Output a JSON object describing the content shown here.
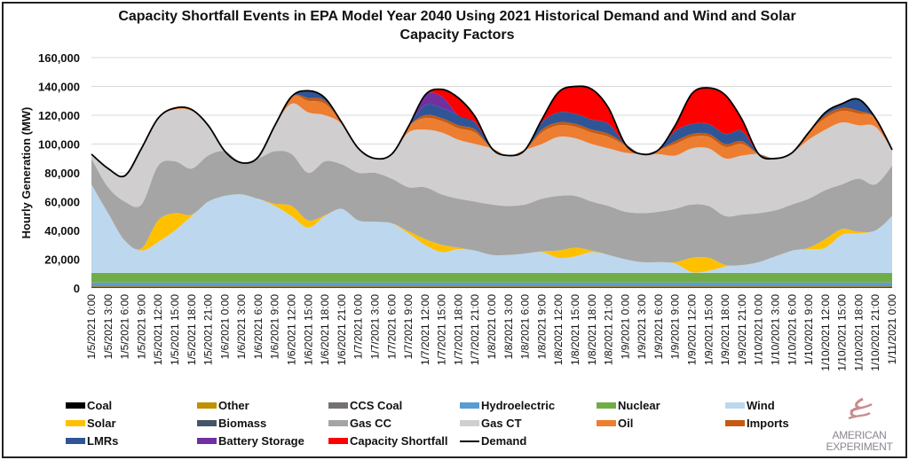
{
  "chart_data": {
    "type": "area",
    "stacked": true,
    "title": "Capacity Shortfall Events in EPA Model Year 2040 Using 2021 Historical Demand and Wind and Solar Capacity Factors",
    "title_lines": [
      "Capacity Shortfall Events in EPA Model Year 2040 Using 2021 Historical Demand and Wind and Solar",
      "Capacity Factors"
    ],
    "ylabel": "Hourly Generation (MW)",
    "xlabel": "",
    "ylim": [
      0,
      160000
    ],
    "yticks": [
      0,
      20000,
      40000,
      60000,
      80000,
      100000,
      120000,
      140000,
      160000
    ],
    "ytick_labels": [
      "0",
      "20,000",
      "40,000",
      "60,000",
      "80,000",
      "100,000",
      "120,000",
      "140,000",
      "160,000"
    ],
    "grid": true,
    "legend_position": "bottom",
    "x": [
      "1/5/2021 0:00",
      "1/5/2021 3:00",
      "1/5/2021 6:00",
      "1/5/2021 9:00",
      "1/5/2021 12:00",
      "1/5/2021 15:00",
      "1/5/2021 18:00",
      "1/5/2021 21:00",
      "1/6/2021 0:00",
      "1/6/2021 3:00",
      "1/6/2021 6:00",
      "1/6/2021 9:00",
      "1/6/2021 12:00",
      "1/6/2021 15:00",
      "1/6/2021 18:00",
      "1/6/2021 21:00",
      "1/7/2021 0:00",
      "1/7/2021 3:00",
      "1/7/2021 6:00",
      "1/7/2021 9:00",
      "1/7/2021 12:00",
      "1/7/2021 15:00",
      "1/7/2021 18:00",
      "1/7/2021 21:00",
      "1/8/2021 0:00",
      "1/8/2021 3:00",
      "1/8/2021 6:00",
      "1/8/2021 9:00",
      "1/8/2021 12:00",
      "1/8/2021 15:00",
      "1/8/2021 18:00",
      "1/8/2021 21:00",
      "1/9/2021 0:00",
      "1/9/2021 3:00",
      "1/9/2021 6:00",
      "1/9/2021 9:00",
      "1/9/2021 12:00",
      "1/9/2021 15:00",
      "1/9/2021 18:00",
      "1/9/2021 21:00",
      "1/10/2021 0:00",
      "1/10/2021 3:00",
      "1/10/2021 6:00",
      "1/10/2021 9:00",
      "1/10/2021 12:00",
      "1/10/2021 15:00",
      "1/10/2021 18:00",
      "1/10/2021 21:00",
      "1/11/2021 0:00"
    ],
    "series": [
      {
        "name": "Coal",
        "color": "#000000",
        "values": [
          300,
          300,
          300,
          300,
          300,
          300,
          300,
          300,
          300,
          300,
          300,
          300,
          300,
          300,
          300,
          300,
          300,
          300,
          300,
          300,
          300,
          300,
          300,
          300,
          300,
          300,
          300,
          300,
          300,
          300,
          300,
          300,
          300,
          300,
          300,
          300,
          300,
          300,
          300,
          300,
          300,
          300,
          300,
          300,
          300,
          300,
          300,
          300,
          300
        ]
      },
      {
        "name": "Other",
        "color": "#bf9000",
        "values": [
          600,
          600,
          600,
          600,
          600,
          600,
          600,
          600,
          600,
          600,
          600,
          600,
          600,
          600,
          600,
          600,
          600,
          600,
          600,
          600,
          600,
          600,
          600,
          600,
          600,
          600,
          600,
          600,
          600,
          600,
          600,
          600,
          600,
          600,
          600,
          600,
          600,
          600,
          600,
          600,
          600,
          600,
          600,
          600,
          600,
          600,
          600,
          600,
          600
        ]
      },
      {
        "name": "CCS Coal",
        "color": "#767171",
        "values": [
          700,
          700,
          700,
          700,
          700,
          700,
          700,
          700,
          700,
          700,
          700,
          700,
          700,
          700,
          700,
          700,
          700,
          700,
          700,
          700,
          700,
          700,
          700,
          700,
          700,
          700,
          700,
          700,
          700,
          700,
          700,
          700,
          700,
          700,
          700,
          700,
          700,
          700,
          700,
          700,
          700,
          700,
          700,
          700,
          700,
          700,
          700,
          700,
          700
        ]
      },
      {
        "name": "Hydroelectric",
        "color": "#5b9bd5",
        "values": [
          2200,
          2200,
          2200,
          2200,
          2200,
          2200,
          2200,
          2200,
          2200,
          2200,
          2200,
          2200,
          2200,
          2200,
          2200,
          2200,
          2200,
          2200,
          2200,
          2200,
          2200,
          2200,
          2200,
          2200,
          2200,
          2200,
          2200,
          2200,
          2200,
          2200,
          2200,
          2200,
          2200,
          2200,
          2200,
          2200,
          2200,
          2200,
          2200,
          2200,
          2200,
          2200,
          2200,
          2200,
          2200,
          2200,
          2200,
          2200,
          2200
        ]
      },
      {
        "name": "Nuclear",
        "color": "#70ad47",
        "values": [
          6700,
          6700,
          6700,
          6700,
          6700,
          6700,
          6700,
          6700,
          6700,
          6700,
          6700,
          6700,
          6700,
          6700,
          6700,
          6700,
          6700,
          6700,
          6700,
          6700,
          6700,
          6700,
          6700,
          6700,
          6700,
          6700,
          6700,
          6700,
          6700,
          6700,
          6700,
          6700,
          6700,
          6700,
          6700,
          6700,
          6700,
          6700,
          6700,
          6700,
          6700,
          6700,
          6700,
          6700,
          6700,
          6700,
          6700,
          6700,
          6700
        ]
      },
      {
        "name": "Wind",
        "color": "#bdd7ee",
        "values": [
          61500,
          41500,
          22500,
          15500,
          21500,
          29500,
          39500,
          49500,
          53500,
          54500,
          51500,
          46500,
          39500,
          31500,
          39500,
          44500,
          36500,
          35500,
          34500,
          27500,
          19500,
          14500,
          16500,
          15500,
          12500,
          12500,
          13500,
          14500,
          10500,
          11500,
          14500,
          12500,
          9500,
          7500,
          7500,
          6500,
          500,
          1500,
          4500,
          5500,
          7500,
          11500,
          15500,
          16500,
          17500,
          26500,
          27500,
          29500,
          39500
        ]
      },
      {
        "name": "Solar",
        "color": "#ffc000",
        "values": [
          0,
          0,
          0,
          1500,
          15000,
          12000,
          1000,
          0,
          0,
          0,
          0,
          1500,
          7000,
          5000,
          500,
          0,
          0,
          0,
          0,
          1500,
          4000,
          5000,
          1000,
          0,
          0,
          0,
          0,
          500,
          5000,
          6000,
          1000,
          0,
          0,
          0,
          0,
          1000,
          10000,
          9000,
          1000,
          0,
          0,
          0,
          0,
          1000,
          6000,
          4000,
          1000,
          0,
          0
        ]
      },
      {
        "name": "Biomass",
        "color": "#44546a",
        "values": [
          0,
          0,
          0,
          0,
          0,
          0,
          0,
          0,
          0,
          0,
          0,
          0,
          0,
          0,
          0,
          0,
          0,
          0,
          0,
          0,
          0,
          0,
          0,
          0,
          0,
          0,
          0,
          0,
          0,
          0,
          0,
          0,
          0,
          0,
          0,
          0,
          0,
          0,
          0,
          0,
          0,
          0,
          0,
          0,
          0,
          0,
          0,
          0,
          0
        ]
      },
      {
        "name": "Gas CC",
        "color": "#a5a5a5",
        "values": [
          18000,
          18000,
          27000,
          30500,
          38000,
          36000,
          32000,
          32000,
          31000,
          22000,
          28000,
          36500,
          36000,
          33000,
          37500,
          31000,
          33000,
          34000,
          31000,
          30500,
          36000,
          35000,
          34000,
          34000,
          35000,
          34000,
          34000,
          36500,
          38000,
          36000,
          34000,
          34000,
          33000,
          34000,
          35000,
          37000,
          37000,
          36000,
          34000,
          35000,
          34000,
          32000,
          32000,
          34000,
          34000,
          31000,
          37000,
          32000,
          35000
        ]
      },
      {
        "name": "Gas CT",
        "color": "#d0cece",
        "values": [
          3000,
          13000,
          18000,
          39000,
          33000,
          36000,
          40000,
          21000,
          0,
          0,
          1000,
          18000,
          35000,
          42000,
          32000,
          28000,
          17000,
          10000,
          17000,
          38000,
          40000,
          43000,
          41000,
          40000,
          39000,
          35000,
          38000,
          38000,
          41000,
          40000,
          40000,
          40000,
          41000,
          41000,
          40000,
          37000,
          39000,
          40000,
          40000,
          41000,
          41000,
          36000,
          36000,
          41000,
          42000,
          43000,
          37000,
          40000,
          11000
        ]
      },
      {
        "name": "Oil",
        "color": "#ed7d31",
        "values": [
          0,
          0,
          0,
          0,
          0,
          1000,
          1000,
          0,
          0,
          0,
          0,
          0,
          5000,
          8000,
          8000,
          1000,
          0,
          0,
          0,
          4000,
          8000,
          8000,
          8000,
          8000,
          0,
          0,
          0,
          8000,
          8000,
          8000,
          8000,
          8000,
          5000,
          0,
          3000,
          8000,
          8000,
          8000,
          8000,
          8000,
          0,
          0,
          0,
          5000,
          8000,
          8000,
          8000,
          6000,
          0
        ]
      },
      {
        "name": "Imports",
        "color": "#c55a11",
        "values": [
          0,
          0,
          0,
          0,
          0,
          0,
          0,
          0,
          0,
          0,
          0,
          0,
          0,
          2000,
          2000,
          0,
          0,
          0,
          0,
          0,
          2000,
          2000,
          2000,
          2000,
          0,
          0,
          0,
          2000,
          2000,
          2000,
          2000,
          2000,
          1000,
          0,
          0,
          2000,
          2000,
          2000,
          2000,
          2000,
          0,
          0,
          0,
          0,
          2000,
          2000,
          2000,
          0,
          0
        ]
      },
      {
        "name": "LMRs",
        "color": "#2f5597",
        "values": [
          0,
          0,
          0,
          0,
          0,
          0,
          0,
          0,
          0,
          0,
          0,
          0,
          0,
          5000,
          2000,
          0,
          0,
          0,
          0,
          0,
          7000,
          7000,
          7000,
          5000,
          0,
          0,
          0,
          5000,
          7000,
          7000,
          7000,
          7000,
          0,
          0,
          0,
          7000,
          7000,
          7000,
          7000,
          7000,
          0,
          0,
          0,
          0,
          2000,
          3000,
          8000,
          0,
          0
        ]
      },
      {
        "name": "Battery Storage",
        "color": "#7030a0",
        "values": [
          0,
          0,
          0,
          0,
          0,
          0,
          0,
          0,
          0,
          0,
          0,
          0,
          0,
          0,
          0,
          0,
          0,
          0,
          0,
          0,
          7000,
          8000,
          0,
          0,
          0,
          0,
          0,
          0,
          0,
          0,
          0,
          0,
          0,
          0,
          0,
          0,
          0,
          0,
          0,
          0,
          0,
          0,
          0,
          0,
          0,
          0,
          0,
          0,
          0
        ]
      },
      {
        "name": "Capacity Shortfall",
        "color": "#ff0000",
        "values": [
          0,
          0,
          0,
          0,
          0,
          0,
          0,
          0,
          0,
          0,
          0,
          0,
          0,
          0,
          0,
          0,
          0,
          0,
          0,
          0,
          0,
          5000,
          12000,
          4000,
          0,
          0,
          0,
          2000,
          14000,
          19000,
          21000,
          11000,
          0,
          0,
          0,
          4000,
          21000,
          25000,
          27000,
          8000,
          0,
          0,
          0,
          0,
          0,
          0,
          0,
          0,
          0
        ]
      }
    ],
    "line_series": {
      "name": "Demand",
      "color": "#000000",
      "values": [
        93000,
        83000,
        78000,
        97000,
        118000,
        125000,
        124000,
        113000,
        95000,
        87000,
        91000,
        113000,
        133000,
        137000,
        132000,
        115000,
        97000,
        90000,
        93000,
        112000,
        134000,
        138000,
        132000,
        119000,
        97000,
        92000,
        96000,
        117000,
        136000,
        140000,
        138000,
        125000,
        100000,
        93000,
        96000,
        113000,
        135000,
        139000,
        134000,
        117000,
        93000,
        90000,
        94000,
        108000,
        122000,
        128000,
        131000,
        118000,
        96000
      ]
    },
    "legend": [
      "Coal",
      "Other",
      "CCS Coal",
      "Hydroelectric",
      "Nuclear",
      "Wind",
      "Solar",
      "Biomass",
      "Gas CC",
      "Gas CT",
      "Oil",
      "Imports",
      "LMRs",
      "Battery Storage",
      "Capacity Shortfall",
      "Demand"
    ]
  },
  "logo": {
    "line1": "AMERICAN",
    "line2": "EXPERIMENT"
  }
}
